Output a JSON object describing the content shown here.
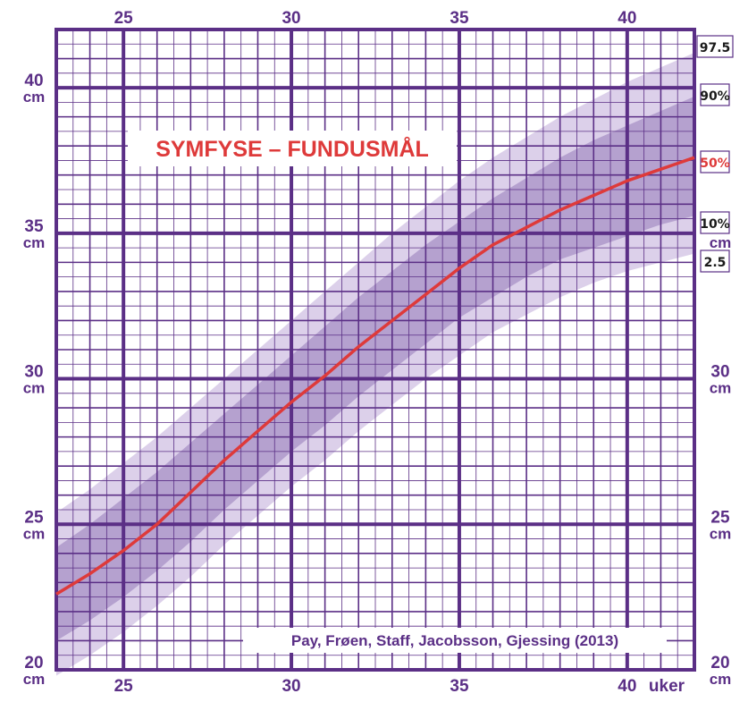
{
  "chart_data": {
    "type": "area",
    "title": "SYMFYSE – FUNDUSMÅL",
    "credit": "Pay, Frøen, Staff, Jacobsson, Gjessing (2013)",
    "x_unit_label": "uker",
    "y_unit_label": "cm",
    "xlim": [
      23,
      42
    ],
    "ylim": [
      20,
      42
    ],
    "x_major_ticks": [
      25,
      30,
      35,
      40
    ],
    "y_major_ticks": [
      20,
      25,
      30,
      35,
      40
    ],
    "x_tick_labels": [
      "25",
      "30",
      "35",
      "40"
    ],
    "y_tick_labels": [
      "20",
      "25",
      "30",
      "35",
      "40"
    ],
    "grid": true,
    "x": [
      23,
      24,
      25,
      26,
      27,
      28,
      29,
      30,
      31,
      32,
      33,
      34,
      35,
      36,
      37,
      38,
      39,
      40,
      41,
      42
    ],
    "series": [
      {
        "name": "97.5",
        "values": [
          25.4,
          26.2,
          27.1,
          28.0,
          29.0,
          30.0,
          31.0,
          32.0,
          33.0,
          34.0,
          35.0,
          35.9,
          36.8,
          37.6,
          38.3,
          39.0,
          39.6,
          40.2,
          40.7,
          41.2
        ]
      },
      {
        "name": "90%",
        "values": [
          24.2,
          25.0,
          25.9,
          26.8,
          27.8,
          28.8,
          29.8,
          30.8,
          31.8,
          32.8,
          33.7,
          34.6,
          35.4,
          36.2,
          36.9,
          37.6,
          38.2,
          38.7,
          39.2,
          39.7
        ]
      },
      {
        "name": "50%",
        "values": [
          22.6,
          23.3,
          24.1,
          25.0,
          26.1,
          27.2,
          28.2,
          29.2,
          30.1,
          31.1,
          32.0,
          32.9,
          33.8,
          34.6,
          35.2,
          35.8,
          36.3,
          36.8,
          37.2,
          37.6
        ]
      },
      {
        "name": "10%",
        "values": [
          21.0,
          21.7,
          22.5,
          23.4,
          24.4,
          25.5,
          26.5,
          27.5,
          28.4,
          29.4,
          30.3,
          31.2,
          32.1,
          32.8,
          33.5,
          34.1,
          34.5,
          34.9,
          35.3,
          35.6
        ]
      },
      {
        "name": "2.5",
        "values": [
          19.8,
          20.5,
          21.3,
          22.2,
          23.2,
          24.3,
          25.3,
          26.3,
          27.2,
          28.2,
          29.1,
          30.0,
          30.8,
          31.6,
          32.2,
          32.8,
          33.3,
          33.7,
          34.0,
          34.3
        ]
      }
    ],
    "colors": {
      "grid": "#5b2f86",
      "outer_band": "#dcd0ea",
      "inner_band": "#b5a1cf",
      "median_line": "#de3a3a",
      "title": "#de3a3a",
      "tick_text": "#5b2f86"
    }
  }
}
